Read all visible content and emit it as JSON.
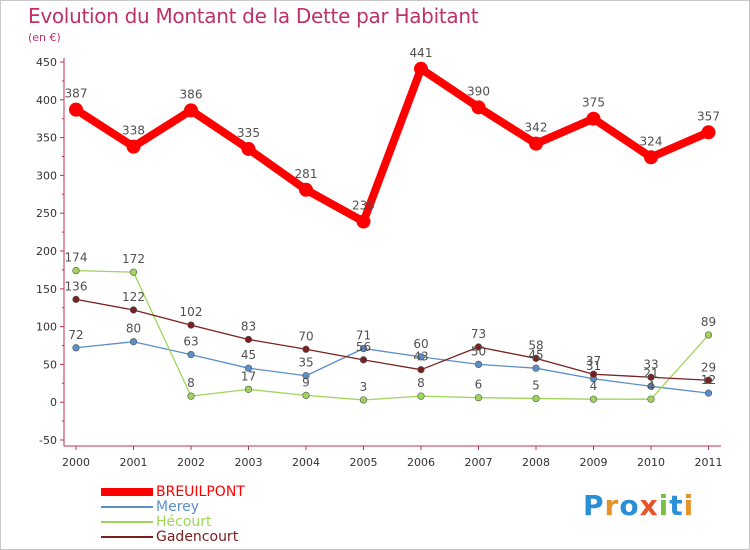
{
  "title": "Evolution du Montant de la Dette par Habitant",
  "unit": "(en €)",
  "brand": {
    "text": "Proxiti",
    "letter_colors": [
      "#2a8fd6",
      "#e8932a",
      "#2a8fd6",
      "#e8532a",
      "#7ac143",
      "#2a8fd6",
      "#e8932a"
    ]
  },
  "chart_data": {
    "type": "line",
    "x": [
      "2000",
      "2001",
      "2002",
      "2003",
      "2004",
      "2005",
      "2006",
      "2007",
      "2008",
      "2009",
      "2010",
      "2011"
    ],
    "ylim": [
      -50,
      450
    ],
    "yticks": [
      "-50",
      "0",
      "50",
      "100",
      "150",
      "200",
      "250",
      "300",
      "350",
      "400",
      "450"
    ],
    "grid": false,
    "legend_position": "bottom-left",
    "series": [
      {
        "name": "BREUILPONT",
        "color": "#ff0000",
        "values": [
          387,
          338,
          386,
          335,
          281,
          239,
          441,
          390,
          342,
          375,
          324,
          357
        ]
      },
      {
        "name": "Merey",
        "color": "#5b8fc7",
        "values": [
          72,
          80,
          63,
          45,
          35,
          71,
          60,
          50,
          45,
          31,
          21,
          12
        ]
      },
      {
        "name": "Hécourt",
        "color": "#9fd65a",
        "values": [
          174,
          172,
          8,
          17,
          9,
          3,
          8,
          6,
          5,
          4,
          4,
          89
        ]
      },
      {
        "name": "Gadencourt",
        "color": "#7a2020",
        "values": [
          136,
          122,
          102,
          83,
          70,
          56,
          43,
          73,
          58,
          37,
          33,
          29
        ]
      }
    ]
  }
}
